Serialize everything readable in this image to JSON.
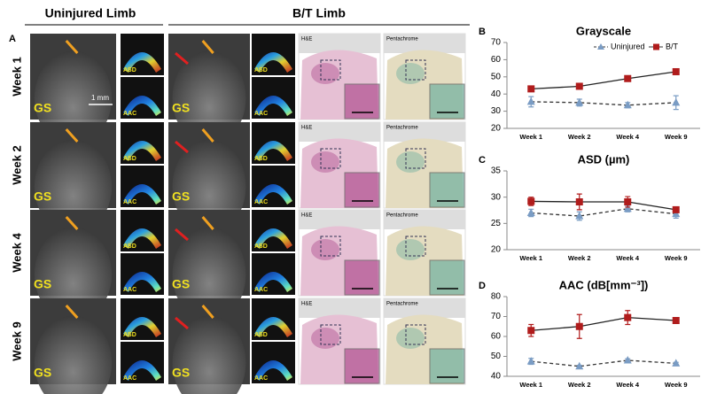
{
  "figure": {
    "panel_label": "A",
    "headers": [
      "Uninjured Limb",
      "B/T Limb"
    ],
    "rows": [
      "Week 1",
      "Week 2",
      "Week 4",
      "Week 9"
    ],
    "image_labels": {
      "gs": "GS",
      "asd": "ASD",
      "aac": "AAC",
      "he": "H&E",
      "pentachrome": "Pentachrome",
      "scale": "1 mm"
    }
  },
  "chart_data": [
    {
      "panel_label": "B",
      "type": "line",
      "title": "Grayscale",
      "categories": [
        "Week 1",
        "Week 2",
        "Week 4",
        "Week 9"
      ],
      "ylim": [
        20,
        70
      ],
      "yticks": [
        20,
        30,
        40,
        50,
        60,
        70
      ],
      "legend": "top-right",
      "series": [
        {
          "name": "Uninjured",
          "color": "#7a9cc4",
          "marker": "triangle",
          "line_style": "dashed",
          "values": [
            35.5,
            35,
            33.5,
            35
          ],
          "errors": [
            3,
            2,
            1.5,
            4
          ]
        },
        {
          "name": "B/T",
          "color": "#b01c1c",
          "marker": "square",
          "line_style": "solid",
          "values": [
            43,
            44.5,
            49,
            53
          ],
          "errors": [
            1,
            0.5,
            0.5,
            1.5
          ]
        }
      ]
    },
    {
      "panel_label": "C",
      "type": "line",
      "title": "ASD (µm)",
      "categories": [
        "Week 1",
        "Week 2",
        "Week 4",
        "Week 9"
      ],
      "ylim": [
        20,
        35
      ],
      "yticks": [
        20,
        25,
        30,
        35
      ],
      "series": [
        {
          "name": "Uninjured",
          "color": "#7a9cc4",
          "marker": "triangle",
          "line_style": "dashed",
          "values": [
            27,
            26.4,
            27.8,
            26.8
          ],
          "errors": [
            0.7,
            0.8,
            0.6,
            0.8
          ]
        },
        {
          "name": "B/T",
          "color": "#b01c1c",
          "marker": "square",
          "line_style": "solid",
          "values": [
            29.2,
            29.1,
            29.1,
            27.6
          ],
          "errors": [
            0.8,
            1.5,
            1,
            0.3
          ]
        }
      ]
    },
    {
      "panel_label": "D",
      "type": "line",
      "title": "AAC (dB[mm⁻³])",
      "categories": [
        "Week 1",
        "Week 2",
        "Week 4",
        "Week 9"
      ],
      "ylim": [
        40,
        80
      ],
      "yticks": [
        40,
        50,
        60,
        70,
        80
      ],
      "series": [
        {
          "name": "Uninjured",
          "color": "#7a9cc4",
          "marker": "triangle",
          "line_style": "dashed",
          "values": [
            47.5,
            45,
            48,
            46.5
          ],
          "errors": [
            1.5,
            0.5,
            0.8,
            0.5
          ]
        },
        {
          "name": "B/T",
          "color": "#b01c1c",
          "marker": "square",
          "line_style": "solid",
          "values": [
            63,
            65,
            69.5,
            68
          ],
          "errors": [
            3,
            6,
            3.5,
            1
          ]
        }
      ]
    }
  ]
}
